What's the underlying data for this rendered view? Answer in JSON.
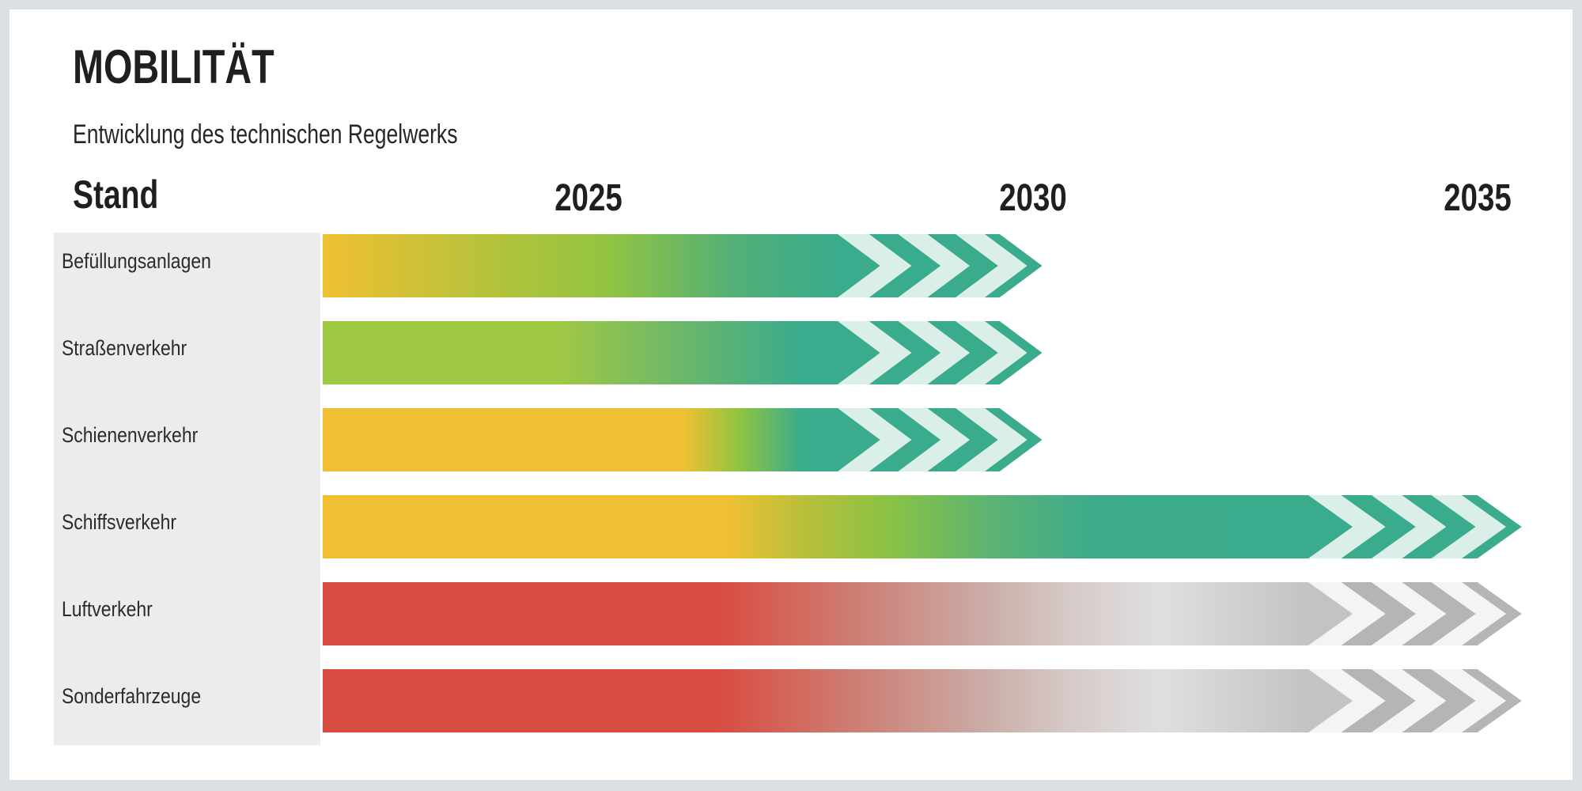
{
  "header": {
    "title": "MOBILITÄT",
    "subtitle": "Entwicklung des technischen Regelwerks"
  },
  "axis": {
    "stand_label": "Stand",
    "ticks": [
      "2025",
      "2030",
      "2035"
    ]
  },
  "colors": {
    "frame": "#dbe0e4",
    "card_background": "#ffffff",
    "label_panel": "#ececec",
    "text": "#1f1f1f",
    "yellow": "#f0c032",
    "green": "#9fc845",
    "teal": "#3aab8d",
    "mint": "#d9efe8",
    "red": "#d94c41",
    "gray_dark": "#b3b5b7",
    "gray_light": "#f3f4f5"
  },
  "palettes": {
    "teal": {
      "light": "#d9efe8",
      "dark": "#3aab8d",
      "taper": "#3aab8d"
    },
    "gray": {
      "light": "#f3f4f5",
      "dark": "#b3b5b7",
      "taper": "#c2c3c5"
    }
  },
  "chart_data": {
    "type": "bar",
    "subtype": "horizontal-roadmap-timeline",
    "title": "MOBILITÄT",
    "subtitle": "Entwicklung des technischen Regelwerks",
    "xlabel": "",
    "ylabel": "",
    "x_axis": {
      "label": "Stand",
      "ticks": [
        2025,
        2030,
        2035
      ],
      "range": [
        2022,
        2036.3
      ],
      "grid": false
    },
    "legend": null,
    "bar_start_year": 2022,
    "categories": [
      "Befüllungsanlagen",
      "Straßenverkehr",
      "Schienenverkehr",
      "Schiffsverkehr",
      "Luftverkehr",
      "Sonderfahrzeuge"
    ],
    "series": [
      {
        "label": "Befüllungsanlagen",
        "palette": "teal",
        "solid_end_year": 2027.8,
        "arrow_end_year": 2030.1,
        "gradient": [
          [
            0,
            "#f0c032"
          ],
          [
            0.3,
            "#b9c23b"
          ],
          [
            0.55,
            "#93c441"
          ],
          [
            0.8,
            "#52b077"
          ],
          [
            1,
            "#3aab8d"
          ]
        ]
      },
      {
        "label": "Straßenverkehr",
        "palette": "teal",
        "solid_end_year": 2027.8,
        "arrow_end_year": 2030.1,
        "gradient": [
          [
            0,
            "#9fc845"
          ],
          [
            0.46,
            "#9fc845"
          ],
          [
            0.75,
            "#5fb472"
          ],
          [
            0.93,
            "#3aab8d"
          ],
          [
            1,
            "#3aab8d"
          ]
        ]
      },
      {
        "label": "Schienenverkehr",
        "palette": "teal",
        "solid_end_year": 2027.8,
        "arrow_end_year": 2030.1,
        "gradient": [
          [
            0,
            "#f0c032"
          ],
          [
            0.7,
            "#f0c032"
          ],
          [
            0.81,
            "#8fc441"
          ],
          [
            0.93,
            "#3aab8d"
          ],
          [
            1,
            "#3aab8d"
          ]
        ]
      },
      {
        "label": "Schiffsverkehr",
        "palette": "teal",
        "solid_end_year": 2033.1,
        "arrow_end_year": 2035.5,
        "gradient": [
          [
            0,
            "#f0c032"
          ],
          [
            0.41,
            "#f0c032"
          ],
          [
            0.49,
            "#b8bf3b"
          ],
          [
            0.58,
            "#87c246"
          ],
          [
            0.68,
            "#5bb375"
          ],
          [
            0.78,
            "#3dab8c"
          ],
          [
            1,
            "#3aab8d"
          ]
        ]
      },
      {
        "label": "Luftverkehr",
        "palette": "gray",
        "solid_end_year": 2033.1,
        "arrow_end_year": 2035.5,
        "gradient": [
          [
            0,
            "#d94c41"
          ],
          [
            0.4,
            "#d94c41"
          ],
          [
            0.55,
            "#cd8177"
          ],
          [
            0.66,
            "#c9a8a2"
          ],
          [
            0.76,
            "#d6cbc9"
          ],
          [
            0.85,
            "#dfdfdf"
          ],
          [
            1,
            "#c2c3c5"
          ]
        ]
      },
      {
        "label": "Sonderfahrzeuge",
        "palette": "gray",
        "solid_end_year": 2033.1,
        "arrow_end_year": 2035.5,
        "gradient": [
          [
            0,
            "#d94c41"
          ],
          [
            0.4,
            "#d94c41"
          ],
          [
            0.55,
            "#cd8177"
          ],
          [
            0.66,
            "#c9a8a2"
          ],
          [
            0.76,
            "#d6cbc9"
          ],
          [
            0.85,
            "#dfdfdf"
          ],
          [
            1,
            "#c2c3c5"
          ]
        ]
      }
    ]
  }
}
